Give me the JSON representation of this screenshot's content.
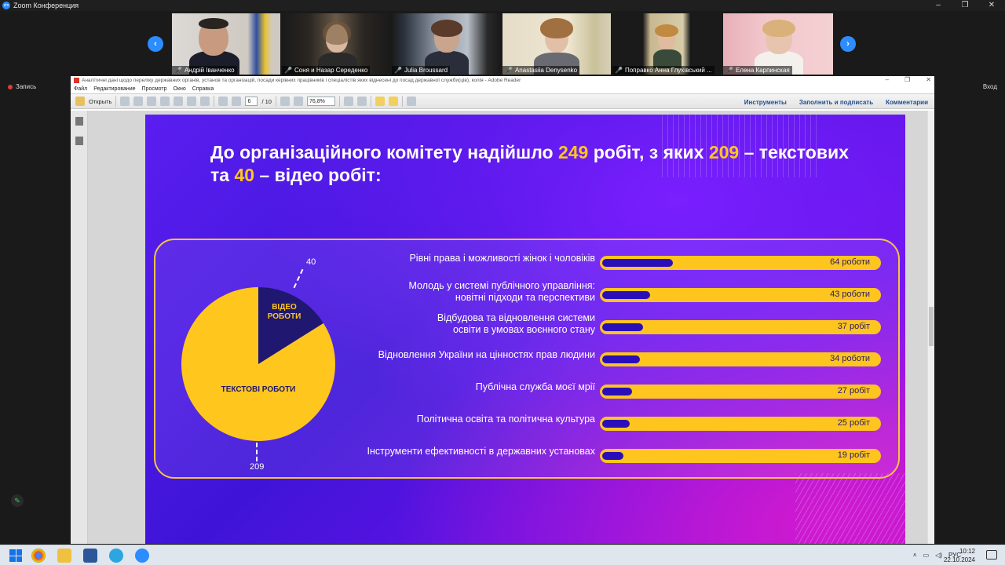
{
  "zoom": {
    "title": "Zoom Конференция",
    "record_label": "Запись",
    "exit_label": "Вход",
    "participants": [
      {
        "name": "Андрій Іванченко"
      },
      {
        "name": "Соня и Назар Середенко"
      },
      {
        "name": "Julia Broussard"
      },
      {
        "name": "Anastasiia Denysenko"
      },
      {
        "name": "Поправко Анна Глухівський ..."
      },
      {
        "name": "Елена Карпинская"
      }
    ]
  },
  "reader": {
    "title": "Аналітичні дані щодо переліку державних органів, установ та організацій, посади керівних працівників і спеціалістів яких віднесені до посад державної служби(ців), копія - Adobe Reader",
    "menu": [
      "Файл",
      "Редактирование",
      "Просмотр",
      "Окно",
      "Справка"
    ],
    "open_label": "Открыть",
    "page_current": "6",
    "page_total": "/ 10",
    "zoom_value": "76,8%",
    "right_links": [
      "Инструменты",
      "Заполнить и подписать",
      "Комментарии"
    ]
  },
  "slide": {
    "title_part1": "До організаційного комітету надійшло ",
    "title_num1": "249",
    "title_part2": " робіт, з яких ",
    "title_num2": "209",
    "title_part3": " – текстових та ",
    "title_num3": "40",
    "title_part4": " – відео робіт:"
  },
  "chart_data": [
    {
      "type": "pie",
      "categories": [
        "ВІДЕО РОБОТИ",
        "ТЕКСТОВІ РОБОТИ"
      ],
      "values": [
        40,
        209
      ],
      "labels": [
        "40",
        "209"
      ],
      "colors": [
        "#1f1770",
        "#ffc61e"
      ]
    },
    {
      "type": "bar",
      "orientation": "horizontal",
      "categories": [
        "Рівні права і можливості жінок і чоловіків",
        "Молодь у системі публічного управління: новітні підходи та перспективи",
        "Відбудова та відновлення системи освіти в умовах воєнного стану",
        "Відновлення України на цінностях прав людини",
        "Публічна служба моєї мрії",
        "Політична освіта та політична культура",
        "Інструменти ефективності в державних установах"
      ],
      "label_lines": [
        [
          "Рівні права і можливості жінок і чоловіків"
        ],
        [
          "Молодь у системі публічного управління:",
          "новітні підходи та перспективи"
        ],
        [
          "Відбудова та відновлення системи",
          "освіти в умовах воєнного стану"
        ],
        [
          "Відновлення України на цінностях прав людини"
        ],
        [
          "Публічна служба моєї мрії"
        ],
        [
          "Політична освіта та політична культура"
        ],
        [
          "Інструменти ефективності в державних установах"
        ]
      ],
      "values": [
        64,
        43,
        37,
        34,
        27,
        25,
        19
      ],
      "value_labels": [
        "64 роботи",
        "43 роботи",
        "37 робіт",
        "34 роботи",
        "27 робіт",
        "25 робіт",
        "19 робіт"
      ],
      "xlim": [
        0,
        249
      ],
      "colors": {
        "track": "#fdc51e",
        "fill": "#2a0fb8"
      }
    }
  ],
  "taskbar": {
    "lang": "РУС",
    "time": "10:12",
    "date": "22.10.2024"
  }
}
